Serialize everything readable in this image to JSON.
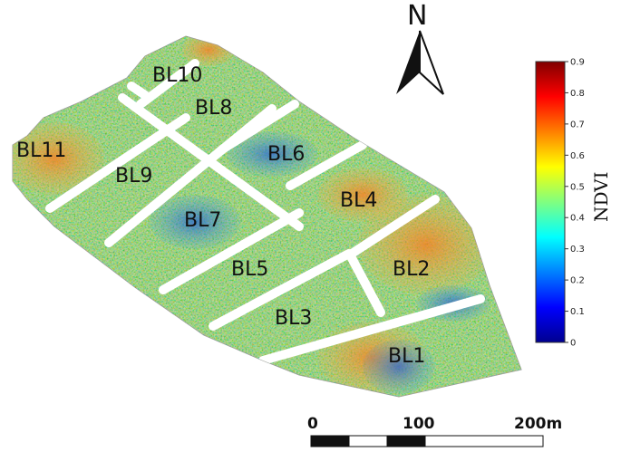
{
  "map": {
    "blocks": [
      {
        "id": "BL1",
        "label": "BL1"
      },
      {
        "id": "BL2",
        "label": "BL2"
      },
      {
        "id": "BL3",
        "label": "BL3"
      },
      {
        "id": "BL4",
        "label": "BL4"
      },
      {
        "id": "BL5",
        "label": "BL5"
      },
      {
        "id": "BL6",
        "label": "BL6"
      },
      {
        "id": "BL7",
        "label": "BL7"
      },
      {
        "id": "BL8",
        "label": "BL8"
      },
      {
        "id": "BL9",
        "label": "BL9"
      },
      {
        "id": "BL10",
        "label": "BL10"
      },
      {
        "id": "BL11",
        "label": "BL11"
      }
    ],
    "north_arrow": {
      "label": "N"
    },
    "colorbar": {
      "title": "NDVI",
      "min": 0,
      "max": 0.9,
      "ticks": [
        "0",
        "0.1",
        "0.2",
        "0.3",
        "0.4",
        "0.5",
        "0.6",
        "0.7",
        "0.8",
        "0.9"
      ],
      "colormap": [
        "#00008f",
        "#0000ff",
        "#0080ff",
        "#00ffff",
        "#80ff80",
        "#ffff00",
        "#ff8000",
        "#ff0000",
        "#800000"
      ]
    },
    "scale_bar": {
      "labels": [
        "0",
        "100",
        "200m"
      ],
      "units": "m"
    },
    "colors": {
      "field_base": "#8fd17a",
      "gap": "#ffffff",
      "outline": "#9a9a9a"
    }
  }
}
